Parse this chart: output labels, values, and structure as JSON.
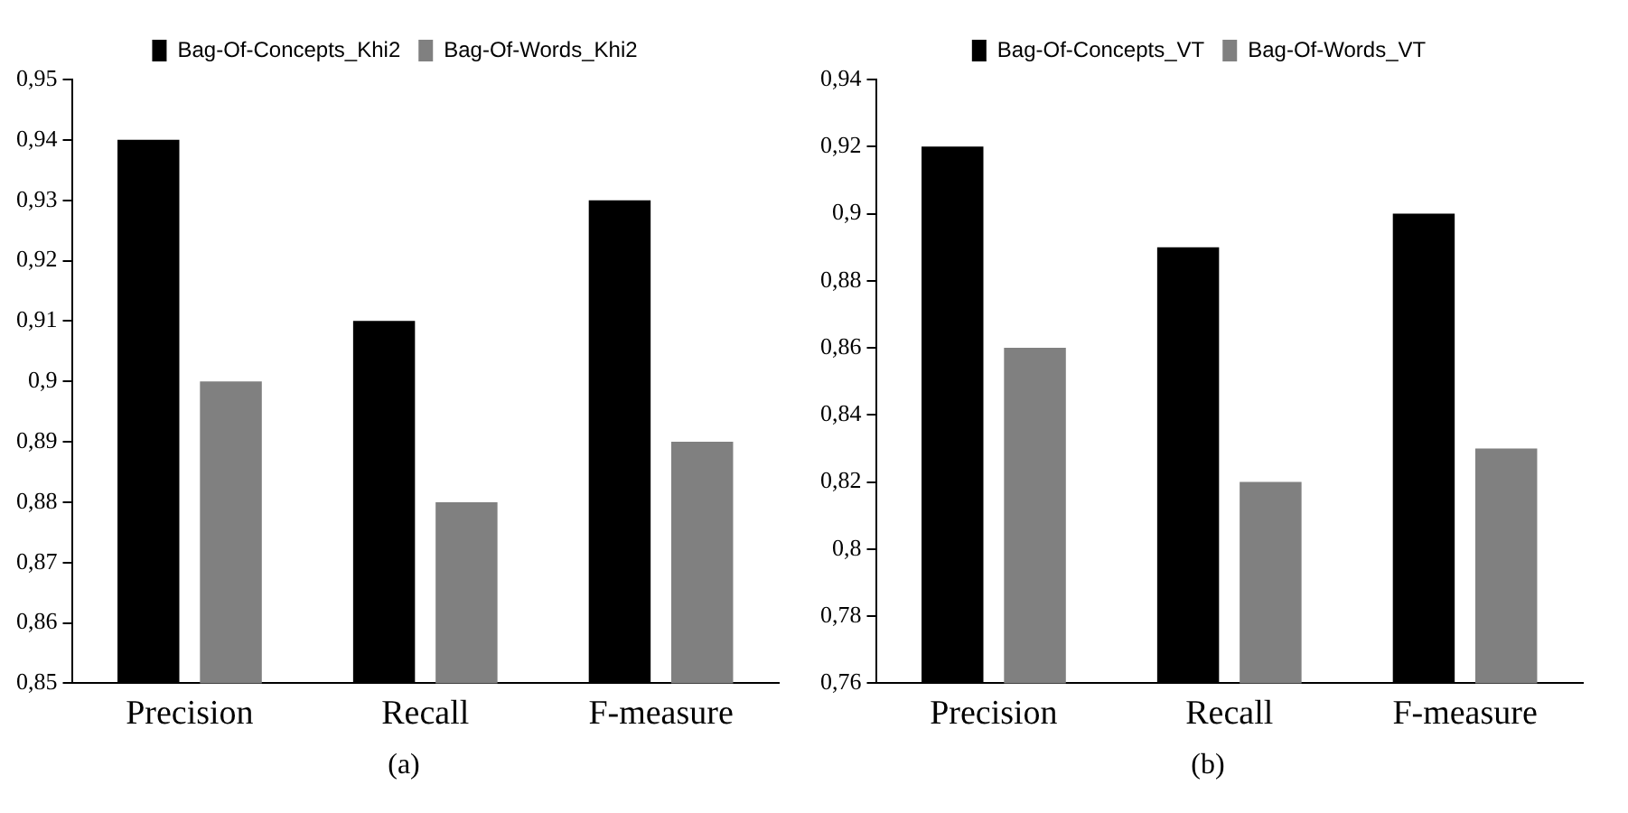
{
  "chart_data": [
    {
      "type": "bar",
      "categories": [
        "Precision",
        "Recall",
        "F-measure"
      ],
      "series": [
        {
          "name": "Bag-Of-Concepts_Khi2",
          "color": "#000000",
          "values": [
            0.94,
            0.91,
            0.93
          ]
        },
        {
          "name": "Bag-Of-Words_Khi2",
          "color": "#808080",
          "values": [
            0.9,
            0.88,
            0.89
          ]
        }
      ],
      "ylim": [
        0.85,
        0.95
      ],
      "yticks": [
        {
          "value": 0.85,
          "label": "0,85"
        },
        {
          "value": 0.86,
          "label": "0,86"
        },
        {
          "value": 0.87,
          "label": "0,87"
        },
        {
          "value": 0.88,
          "label": "0,88"
        },
        {
          "value": 0.89,
          "label": "0,89"
        },
        {
          "value": 0.9,
          "label": "0,9"
        },
        {
          "value": 0.91,
          "label": "0,91"
        },
        {
          "value": 0.92,
          "label": "0,92"
        },
        {
          "value": 0.93,
          "label": "0,93"
        },
        {
          "value": 0.94,
          "label": "0,94"
        },
        {
          "value": 0.95,
          "label": "0,95"
        }
      ],
      "grid": false,
      "legend": "top",
      "annotations": [
        "(a)"
      ]
    },
    {
      "type": "bar",
      "categories": [
        "Precision",
        "Recall",
        "F-measure"
      ],
      "series": [
        {
          "name": "Bag-Of-Concepts_VT",
          "color": "#000000",
          "values": [
            0.92,
            0.89,
            0.9
          ]
        },
        {
          "name": "Bag-Of-Words_VT",
          "color": "#808080",
          "values": [
            0.86,
            0.82,
            0.83
          ]
        }
      ],
      "ylim": [
        0.76,
        0.94
      ],
      "yticks": [
        {
          "value": 0.76,
          "label": "0,76"
        },
        {
          "value": 0.78,
          "label": "0,78"
        },
        {
          "value": 0.8,
          "label": "0,8"
        },
        {
          "value": 0.82,
          "label": "0,82"
        },
        {
          "value": 0.84,
          "label": "0,84"
        },
        {
          "value": 0.86,
          "label": "0,86"
        },
        {
          "value": 0.88,
          "label": "0,88"
        },
        {
          "value": 0.9,
          "label": "0,9"
        },
        {
          "value": 0.92,
          "label": "0,92"
        },
        {
          "value": 0.94,
          "label": "0,94"
        }
      ],
      "grid": false,
      "legend": "top",
      "annotations": [
        "(b)"
      ]
    }
  ]
}
